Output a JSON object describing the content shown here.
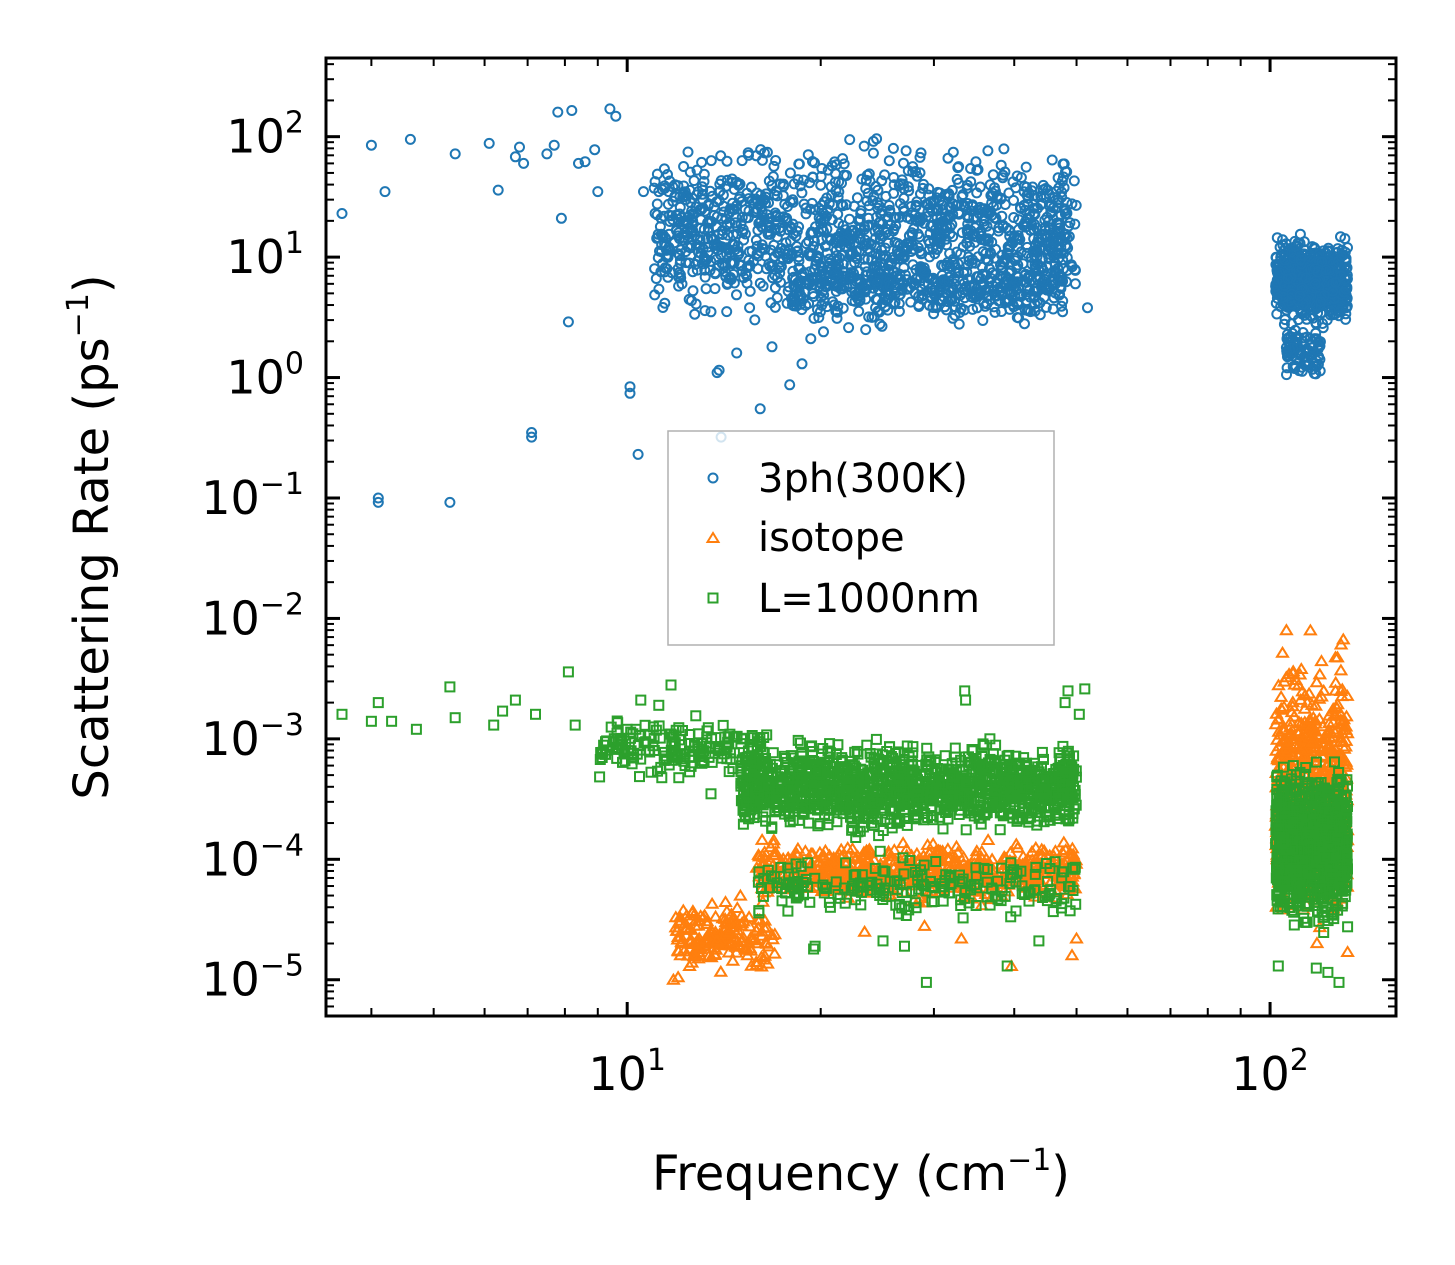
{
  "chart_data": {
    "type": "scatter",
    "title": "",
    "xlabel": "Frequency (cm",
    "xlabel_sup": "−1",
    "xlabel_end": ")",
    "ylabel": "Scattering Rate (ps",
    "ylabel_sup": "−1",
    "ylabel_end": ")",
    "xscale": "log",
    "yscale": "log",
    "xlim": [
      3.4,
      157
    ],
    "ylim": [
      5e-06,
      450
    ],
    "x_ticks": [
      {
        "value": 10,
        "base": "10",
        "exp": "1"
      },
      {
        "value": 100,
        "base": "10",
        "exp": "2"
      }
    ],
    "y_ticks": [
      {
        "value": 100,
        "base": "10",
        "exp": "2"
      },
      {
        "value": 10,
        "base": "10",
        "exp": "1"
      },
      {
        "value": 1,
        "base": "10",
        "exp": "0"
      },
      {
        "value": 0.1,
        "base": "10",
        "exp": "−1"
      },
      {
        "value": 0.01,
        "base": "10",
        "exp": "−2"
      },
      {
        "value": 0.001,
        "base": "10",
        "exp": "−3"
      },
      {
        "value": 0.0001,
        "base": "10",
        "exp": "−4"
      },
      {
        "value": 1e-05,
        "base": "10",
        "exp": "−5"
      }
    ],
    "legend": {
      "position": "center"
    },
    "series": [
      {
        "name": "3ph(300K)",
        "marker": "circle",
        "color": "#1f77b4",
        "points": [
          [
            3.6,
            23
          ],
          [
            4.0,
            85
          ],
          [
            4.1,
            0.1
          ],
          [
            4.1,
            0.092
          ],
          [
            4.2,
            35
          ],
          [
            4.6,
            95
          ],
          [
            5.3,
            0.092
          ],
          [
            5.4,
            72
          ],
          [
            6.1,
            88
          ],
          [
            6.3,
            36
          ],
          [
            6.7,
            68
          ],
          [
            6.8,
            82
          ],
          [
            6.9,
            60
          ],
          [
            7.1,
            0.35
          ],
          [
            7.1,
            0.32
          ],
          [
            7.5,
            72
          ],
          [
            7.7,
            85
          ],
          [
            7.8,
            160
          ],
          [
            7.9,
            21
          ],
          [
            8.1,
            2.9
          ],
          [
            8.2,
            165
          ],
          [
            8.4,
            60
          ],
          [
            8.6,
            62
          ],
          [
            8.9,
            78
          ],
          [
            9.0,
            35
          ],
          [
            9.4,
            170
          ],
          [
            9.6,
            148
          ],
          [
            10.1,
            0.84
          ],
          [
            10.1,
            0.74
          ],
          [
            10.4,
            0.23
          ],
          [
            10.6,
            35
          ],
          [
            11.2,
            35
          ],
          [
            11.6,
            35
          ],
          [
            12.1,
            9.4
          ],
          [
            12.9,
            35
          ],
          [
            13.2,
            7.8
          ],
          [
            13.8,
            1.1
          ],
          [
            13.9,
            1.15
          ],
          [
            14.0,
            0.32
          ],
          [
            14.8,
            1.6
          ],
          [
            15.5,
            3.8
          ],
          [
            16.1,
            0.55
          ],
          [
            16.8,
            1.8
          ],
          [
            17.9,
            0.87
          ],
          [
            18.7,
            1.3
          ],
          [
            19.3,
            2.1
          ],
          [
            20.2,
            2.4
          ],
          [
            21.2,
            3.1
          ],
          [
            22.1,
            2.6
          ],
          [
            23.5,
            2.5
          ],
          [
            24.7,
            3.5
          ],
          [
            26.1,
            4.2
          ],
          [
            27.2,
            6.5
          ],
          [
            28.4,
            4.0
          ],
          [
            33.5,
            4.6
          ],
          [
            35.0,
            5.5
          ],
          [
            38.6,
            6.2
          ],
          [
            40.8,
            14
          ],
          [
            44.0,
            12
          ],
          [
            46.2,
            9.0
          ],
          [
            47.7,
            8.0
          ],
          [
            49.8,
            6.0
          ],
          [
            52.0,
            3.8
          ]
        ],
        "bands": [
          {
            "x": [
              11.0,
              50.0
            ],
            "log_y": [
              0.3,
              2.1
            ],
            "count": 1300
          },
          {
            "x": [
              18.0,
              48.0
            ],
            "log_y": [
              0.4,
              1.1
            ],
            "count": 380
          },
          {
            "x": [
              102.0,
              132.0
            ],
            "log_y": [
              0.35,
              1.25
            ],
            "count": 650
          },
          {
            "x": [
              106.0,
              120.0
            ],
            "log_y": [
              -0.08,
              0.5
            ],
            "count": 90
          }
        ]
      },
      {
        "name": "isotope",
        "marker": "triangle",
        "color": "#ff7f0e",
        "points": [
          [
            11.8,
            1e-05
          ],
          [
            12.0,
            1.05e-05
          ],
          [
            12.5,
            1.3e-05
          ],
          [
            13.0,
            1.8e-05
          ],
          [
            13.5,
            2.4e-05
          ],
          [
            14.2,
            3.2e-05
          ],
          [
            15.0,
            5e-05
          ],
          [
            15.9,
            8.5e-05
          ],
          [
            23.4,
            2.5e-05
          ],
          [
            29.0,
            2.8e-05
          ],
          [
            33.1,
            2.2e-05
          ],
          [
            39.6,
            1.3e-05
          ],
          [
            49.2,
            1.6e-05
          ],
          [
            50.0,
            2.2e-05
          ],
          [
            130.0,
            0.0067
          ],
          [
            132.0,
            1.7e-05
          ]
        ],
        "bands": [
          {
            "x": [
              11.9,
              17.0
            ],
            "log_y": [
              -5.0,
              -4.3
            ],
            "count": 180
          },
          {
            "x": [
              16.0,
              50.0
            ],
            "log_y": [
              -4.4,
              -3.8
            ],
            "count": 650
          },
          {
            "x": [
              102.0,
              132.0
            ],
            "log_y": [
              -4.8,
              -2.05
            ],
            "count": 750
          }
        ]
      },
      {
        "name": "L=1000nm",
        "marker": "square",
        "color": "#2ca02c",
        "points": [
          [
            3.6,
            0.0016
          ],
          [
            4.0,
            0.0014
          ],
          [
            4.1,
            0.002
          ],
          [
            4.3,
            0.0014
          ],
          [
            4.7,
            0.0012
          ],
          [
            5.3,
            0.0027
          ],
          [
            5.4,
            0.0015
          ],
          [
            6.2,
            0.0013
          ],
          [
            6.4,
            0.0017
          ],
          [
            6.7,
            0.0021
          ],
          [
            7.2,
            0.0016
          ],
          [
            8.1,
            0.0036
          ],
          [
            8.3,
            0.0013
          ],
          [
            9.5,
            0.00085
          ],
          [
            10.0,
            0.0012
          ],
          [
            10.5,
            0.0021
          ],
          [
            11.2,
            0.0019
          ],
          [
            11.7,
            0.0028
          ],
          [
            12.0,
            0.00075
          ],
          [
            12.3,
            0.0006
          ],
          [
            13.5,
            0.00035
          ],
          [
            19.5,
            1.8e-05
          ],
          [
            19.6,
            1.9e-05
          ],
          [
            25.0,
            2.1e-05
          ],
          [
            27.0,
            1.9e-05
          ],
          [
            29.2,
            9.5e-06
          ],
          [
            33.5,
            0.0025
          ],
          [
            33.6,
            0.0021
          ],
          [
            39.0,
            1.3e-05
          ],
          [
            43.7,
            2.1e-05
          ],
          [
            48.0,
            0.002
          ],
          [
            48.5,
            0.0025
          ],
          [
            50.5,
            0.0016
          ],
          [
            51.5,
            0.0026
          ],
          [
            103.0,
            1.3e-05
          ],
          [
            118.0,
            1.25e-05
          ],
          [
            123.0,
            1.15e-05
          ],
          [
            128.0,
            9.5e-06
          ],
          [
            132.0,
            2.75e-05
          ]
        ],
        "bands": [
          {
            "x": [
              9.0,
              16.5
            ],
            "log_y": [
              -3.4,
              -2.75
            ],
            "count": 180
          },
          {
            "x": [
              15.0,
              50.0
            ],
            "log_y": [
              -3.85,
              -2.95
            ],
            "count": 1300
          },
          {
            "x": [
              16.0,
              50.0
            ],
            "log_y": [
              -4.55,
              -3.9
            ],
            "count": 220
          },
          {
            "x": [
              102.0,
              132.0
            ],
            "log_y": [
              -4.7,
              -3.05
            ],
            "count": 900
          }
        ]
      }
    ]
  }
}
